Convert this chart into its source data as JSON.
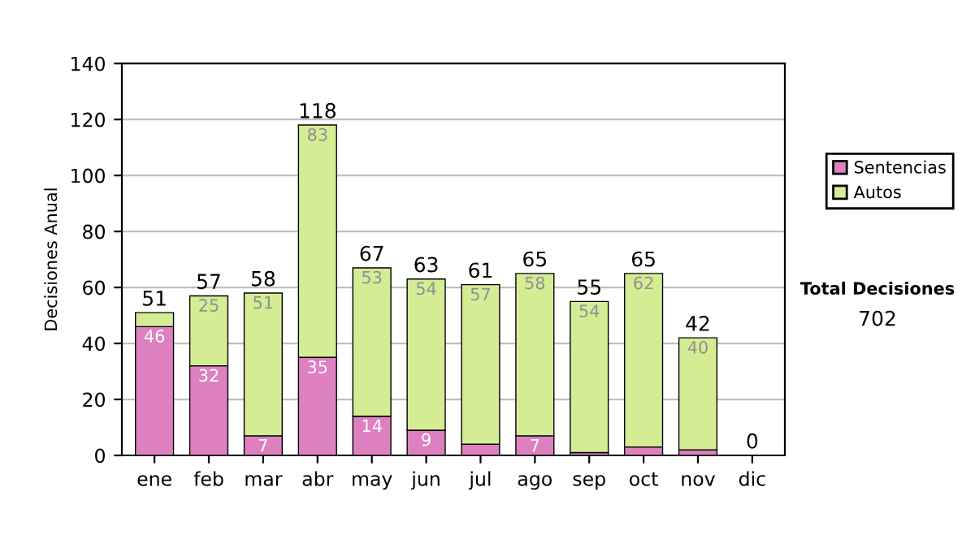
{
  "chart_data": {
    "type": "bar",
    "stacked": true,
    "ylabel": "Decisiones Anual",
    "categories": [
      "ene",
      "feb",
      "mar",
      "abr",
      "may",
      "jun",
      "jul",
      "ago",
      "sep",
      "oct",
      "nov",
      "dic"
    ],
    "series": [
      {
        "name": "Sentencias",
        "color": "#dd80c0",
        "values": [
          46,
          32,
          7,
          35,
          14,
          9,
          4,
          7,
          1,
          3,
          2,
          0
        ],
        "value_labels": [
          "46",
          "32",
          "7",
          "35",
          "14",
          "9",
          null,
          "7",
          null,
          null,
          null,
          null
        ]
      },
      {
        "name": "Autos",
        "color": "#d4ec94",
        "values": [
          5,
          25,
          51,
          83,
          53,
          54,
          57,
          58,
          54,
          62,
          40,
          0
        ],
        "value_labels": [
          null,
          "25",
          "51",
          "83",
          "53",
          "54",
          "57",
          "58",
          "54",
          "62",
          "40",
          null
        ]
      }
    ],
    "totals": [
      "51",
      "57",
      "58",
      "118",
      "67",
      "63",
      "61",
      "65",
      "55",
      "65",
      "42",
      "0"
    ],
    "ylim": [
      0,
      140
    ],
    "yticks": [
      0,
      20,
      40,
      60,
      80,
      100,
      120,
      140
    ],
    "grid": "y",
    "legend": "right",
    "annotations": [
      "Total Decisiones",
      "702"
    ]
  }
}
